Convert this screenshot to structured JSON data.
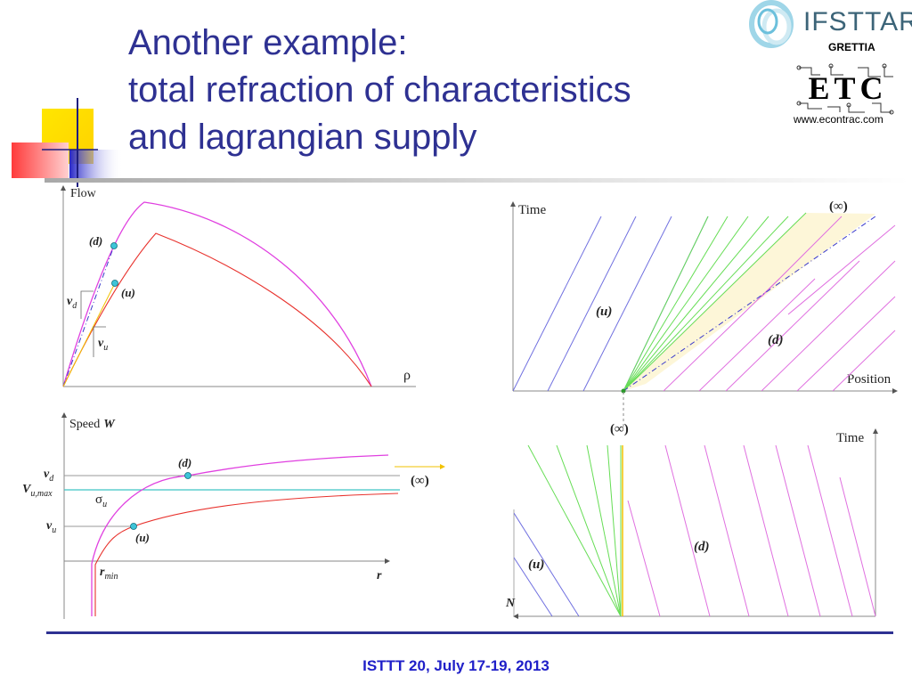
{
  "slide": {
    "title_lines": [
      "Another example:",
      "total refraction of characteristics",
      "and lagrangian supply"
    ],
    "footer": "ISTTT 20, July 17-19, 2013"
  },
  "logos": {
    "ifsttar": "IFSTTAR",
    "grettia": "GRETTIA",
    "etc": "ETC",
    "etc_url": "www.econtrac.com"
  },
  "colors": {
    "title": "#2e3192",
    "downstream_curve": "#e040e0",
    "upstream_curve": "#e8322d",
    "dashdot": "#3a3acc",
    "upstream_characteristics": "#7070e0",
    "fan_characteristics": "#66dd55",
    "downstream_characteristics": "#e070e0",
    "shaded_region": "#fdf6d8",
    "footer": "#1f1fc8"
  },
  "diagrams": {
    "flow_density": {
      "y_axis": "Flow",
      "x_axis": "ρ",
      "point_d": "(d)",
      "point_u": "(u)",
      "vd_main": "v",
      "vd_sub": "d",
      "vu_main": "v",
      "vu_sub": "u"
    },
    "time_position": {
      "y_axis": "Time",
      "x_axis": "Position",
      "infinity": "(∞)",
      "region_u": "(u)",
      "region_d": "(d)"
    },
    "speed_spacing": {
      "y_axis": "Speed",
      "y_axis_bold": "W",
      "vd_main": "v",
      "vd_sub": "d",
      "vumax_main": "V",
      "vumax_sub": "u,max",
      "sigma_main": "σ",
      "sigma_sub": "u",
      "vu_main": "v",
      "vu_sub": "u",
      "rmin_main": "r",
      "rmin_sub": "min",
      "x_axis": "r",
      "point_d": "(d)",
      "point_u": "(u)",
      "infinity": "(∞)"
    },
    "time_n": {
      "infinity": "(∞)",
      "y_axis": "Time",
      "region_u": "(u)",
      "region_d": "(d)",
      "x_axis": "N"
    }
  }
}
